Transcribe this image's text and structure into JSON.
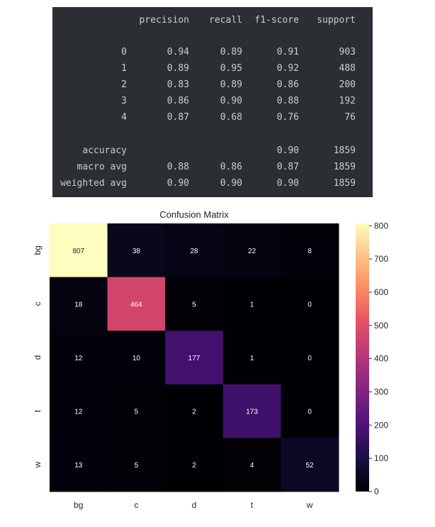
{
  "report": {
    "headers": [
      "precision",
      "recall",
      "f1-score",
      "support"
    ],
    "rows": [
      {
        "label": "0",
        "precision": "0.94",
        "recall": "0.89",
        "f1": "0.91",
        "support": "903"
      },
      {
        "label": "1",
        "precision": "0.89",
        "recall": "0.95",
        "f1": "0.92",
        "support": "488"
      },
      {
        "label": "2",
        "precision": "0.83",
        "recall": "0.89",
        "f1": "0.86",
        "support": "200"
      },
      {
        "label": "3",
        "precision": "0.86",
        "recall": "0.90",
        "f1": "0.88",
        "support": "192"
      },
      {
        "label": "4",
        "precision": "0.87",
        "recall": "0.68",
        "f1": "0.76",
        "support": "76"
      }
    ],
    "summary": [
      {
        "label": "accuracy",
        "precision": "",
        "recall": "",
        "f1": "0.90",
        "support": "1859"
      },
      {
        "label": "macro avg",
        "precision": "0.88",
        "recall": "0.86",
        "f1": "0.87",
        "support": "1859"
      },
      {
        "label": "weighted avg",
        "precision": "0.90",
        "recall": "0.90",
        "f1": "0.90",
        "support": "1859"
      }
    ]
  },
  "chart_data": {
    "type": "heatmap",
    "title": "Confusion Matrix",
    "x_categories": [
      "bg",
      "c",
      "d",
      "t",
      "w"
    ],
    "y_categories": [
      "bg",
      "c",
      "d",
      "t",
      "w"
    ],
    "values": [
      [
        807,
        38,
        28,
        22,
        8
      ],
      [
        18,
        464,
        5,
        1,
        0
      ],
      [
        12,
        10,
        177,
        1,
        0
      ],
      [
        12,
        5,
        2,
        173,
        0
      ],
      [
        13,
        5,
        2,
        4,
        52
      ]
    ],
    "colormap": "magma",
    "colorbar_range": [
      0,
      807
    ],
    "colorbar_ticks": [
      0,
      100,
      200,
      300,
      400,
      500,
      600,
      700,
      800
    ]
  }
}
